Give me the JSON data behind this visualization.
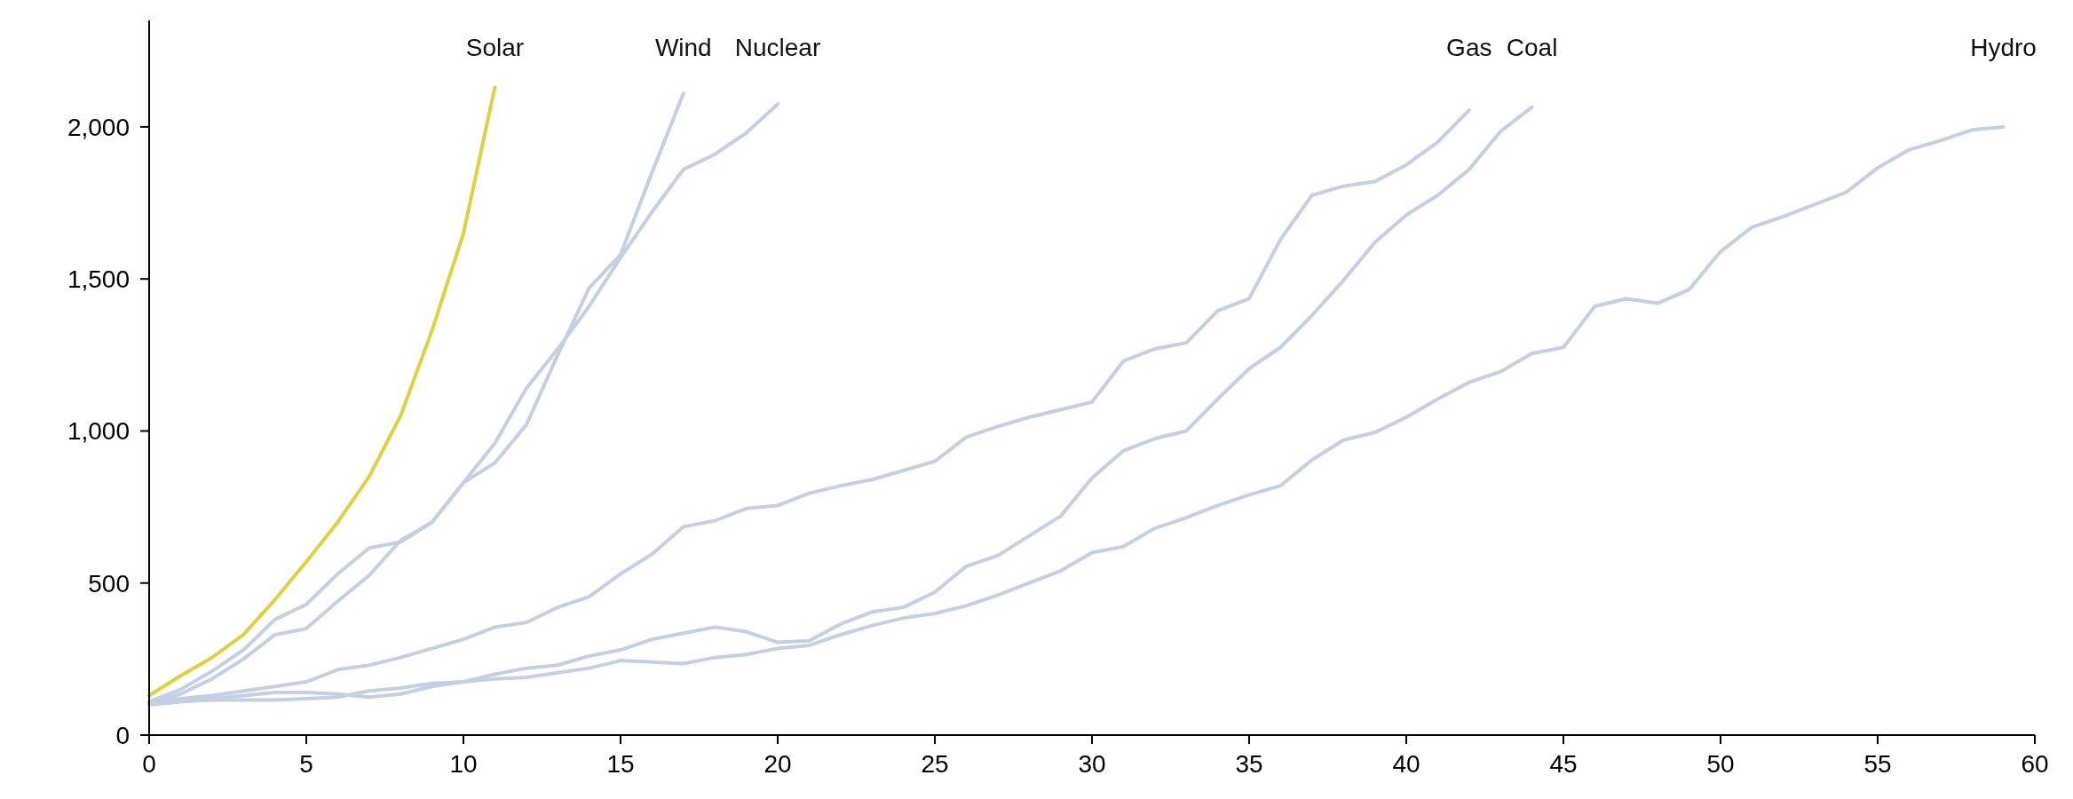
{
  "chart_data": {
    "type": "line",
    "xlim": [
      0,
      60
    ],
    "xticks": [
      0,
      5,
      10,
      15,
      20,
      25,
      30,
      35,
      40,
      45,
      50,
      55,
      60
    ],
    "ylim": [
      0,
      2350
    ],
    "yticks": [
      0,
      500,
      {
        "value": 1000,
        "label": "1,000"
      },
      {
        "value": 1500,
        "label": "1,500"
      },
      {
        "value": 2000,
        "label": "2,000"
      }
    ],
    "grid": false,
    "legend": false,
    "marker": "none",
    "line_style": "solid",
    "series": [
      {
        "name": "Solar",
        "color": "#e0cf40",
        "x": [
          0,
          1,
          2,
          3,
          4,
          5,
          6,
          7,
          8,
          9,
          10,
          11
        ],
        "values": [
          130,
          195,
          255,
          330,
          445,
          570,
          700,
          850,
          1050,
          1330,
          1650,
          2130
        ]
      },
      {
        "name": "Wind",
        "color": "#c3cfe2",
        "x": [
          0,
          1,
          2,
          3,
          4,
          5,
          6,
          7,
          8,
          9,
          10,
          11,
          12,
          13,
          14,
          15,
          16,
          17
        ],
        "values": [
          110,
          150,
          210,
          280,
          380,
          430,
          530,
          615,
          635,
          700,
          830,
          895,
          1020,
          1250,
          1470,
          1580,
          1850,
          2110
        ]
      },
      {
        "name": "Nuclear",
        "color": "#c3cfe2",
        "x": [
          0,
          1,
          2,
          3,
          4,
          5,
          6,
          7,
          8,
          9,
          10,
          11,
          12,
          13,
          14,
          15,
          16,
          17,
          18,
          19,
          20
        ],
        "values": [
          105,
          135,
          185,
          250,
          330,
          350,
          440,
          525,
          640,
          700,
          830,
          960,
          1140,
          1270,
          1410,
          1570,
          1720,
          1860,
          1910,
          1980,
          2075
        ]
      },
      {
        "name": "Gas",
        "color": "#c3cfe2",
        "x": [
          0,
          1,
          2,
          3,
          4,
          5,
          6,
          7,
          8,
          9,
          10,
          11,
          12,
          13,
          14,
          15,
          16,
          17,
          18,
          19,
          20,
          21,
          22,
          23,
          24,
          25,
          26,
          27,
          28,
          29,
          30,
          31,
          32,
          33,
          34,
          35,
          36,
          37,
          38,
          39,
          40,
          41,
          42
        ],
        "values": [
          105,
          120,
          130,
          145,
          160,
          175,
          215,
          230,
          255,
          285,
          315,
          355,
          370,
          420,
          455,
          530,
          595,
          685,
          705,
          745,
          755,
          795,
          820,
          840,
          870,
          900,
          980,
          1015,
          1045,
          1070,
          1095,
          1230,
          1270,
          1290,
          1395,
          1435,
          1630,
          1775,
          1805,
          1820,
          1875,
          1950,
          2055
        ]
      },
      {
        "name": "Coal",
        "color": "#c3cfe2",
        "x": [
          0,
          1,
          2,
          3,
          4,
          5,
          6,
          7,
          8,
          9,
          10,
          11,
          12,
          13,
          14,
          15,
          16,
          17,
          18,
          19,
          20,
          21,
          22,
          23,
          24,
          25,
          26,
          27,
          28,
          29,
          30,
          31,
          32,
          33,
          34,
          35,
          36,
          37,
          38,
          39,
          40,
          41,
          42,
          43,
          44
        ],
        "values": [
          100,
          110,
          120,
          130,
          140,
          140,
          135,
          125,
          135,
          160,
          175,
          200,
          220,
          230,
          260,
          280,
          315,
          335,
          355,
          340,
          305,
          310,
          365,
          405,
          420,
          470,
          555,
          590,
          655,
          720,
          845,
          935,
          975,
          1000,
          1105,
          1205,
          1275,
          1380,
          1495,
          1620,
          1710,
          1775,
          1860,
          1985,
          2065
        ]
      },
      {
        "name": "Hydro",
        "color": "#c3cfe2",
        "x": [
          0,
          1,
          2,
          3,
          4,
          5,
          6,
          7,
          8,
          9,
          10,
          11,
          12,
          13,
          14,
          15,
          16,
          17,
          18,
          19,
          20,
          21,
          22,
          23,
          24,
          25,
          26,
          27,
          28,
          29,
          30,
          31,
          32,
          33,
          34,
          35,
          36,
          37,
          38,
          39,
          40,
          41,
          42,
          43,
          44,
          45,
          46,
          47,
          48,
          49,
          50,
          51,
          52,
          53,
          54,
          55,
          56,
          57,
          58,
          59
        ],
        "values": [
          100,
          110,
          115,
          115,
          115,
          120,
          125,
          145,
          155,
          170,
          175,
          185,
          190,
          205,
          220,
          245,
          240,
          235,
          255,
          265,
          285,
          295,
          330,
          360,
          385,
          400,
          425,
          460,
          500,
          540,
          600,
          620,
          680,
          715,
          755,
          790,
          820,
          905,
          970,
          995,
          1045,
          1105,
          1160,
          1195,
          1255,
          1275,
          1410,
          1435,
          1420,
          1465,
          1590,
          1670,
          1705,
          1745,
          1785,
          1865,
          1925,
          1955,
          1990,
          2000
        ]
      }
    ]
  }
}
